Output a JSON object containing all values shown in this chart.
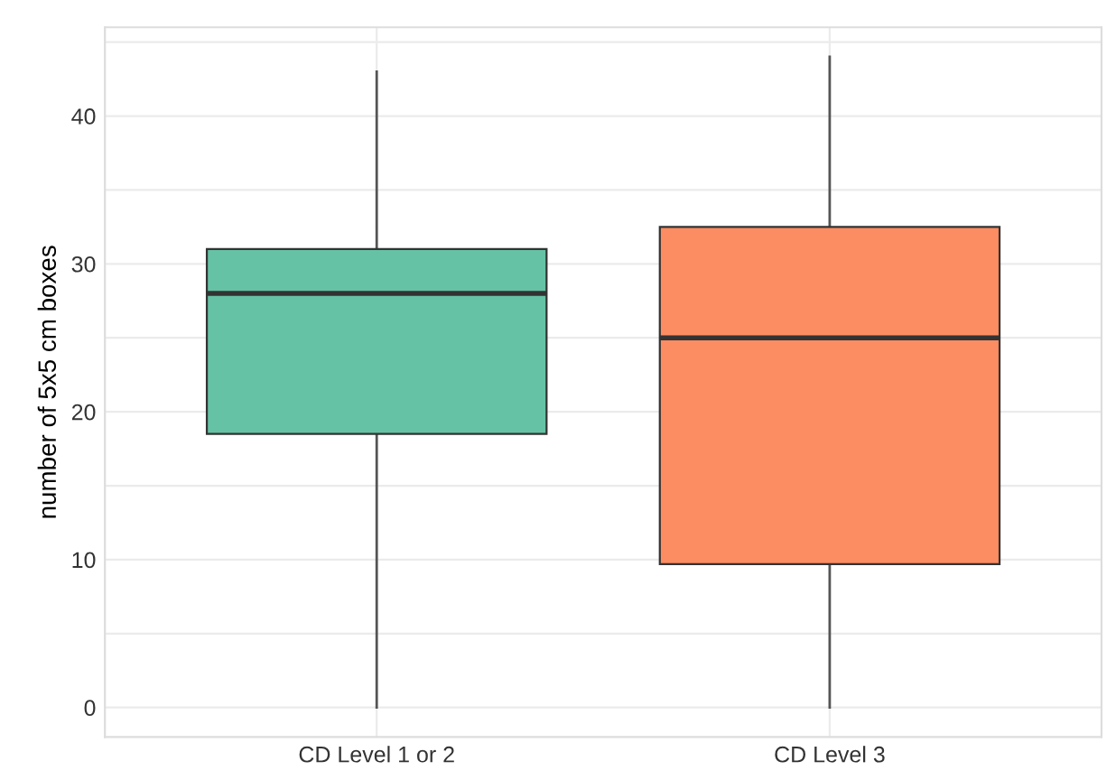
{
  "chart_data": {
    "type": "box",
    "ylabel": "number of 5x5 cm boxes",
    "categories": [
      "CD Level 1 or 2",
      "CD Level 3"
    ],
    "boxes": [
      {
        "low": 0,
        "q1": 18.5,
        "median": 28,
        "q3": 31,
        "high": 43
      },
      {
        "low": 0,
        "q1": 9.7,
        "median": 25,
        "q3": 32.5,
        "high": 44
      }
    ],
    "colors": [
      "#66c2a5",
      "#fc8d62"
    ],
    "ylim": [
      -2,
      46
    ],
    "yticks": [
      0,
      {
        "value": 5,
        "label": null
      },
      10,
      {
        "value": 15,
        "label": null
      },
      20,
      {
        "value": 25,
        "label": null
      },
      30,
      {
        "value": 35,
        "label": null
      },
      40,
      {
        "value": 45,
        "label": null
      }
    ],
    "grid": true
  }
}
